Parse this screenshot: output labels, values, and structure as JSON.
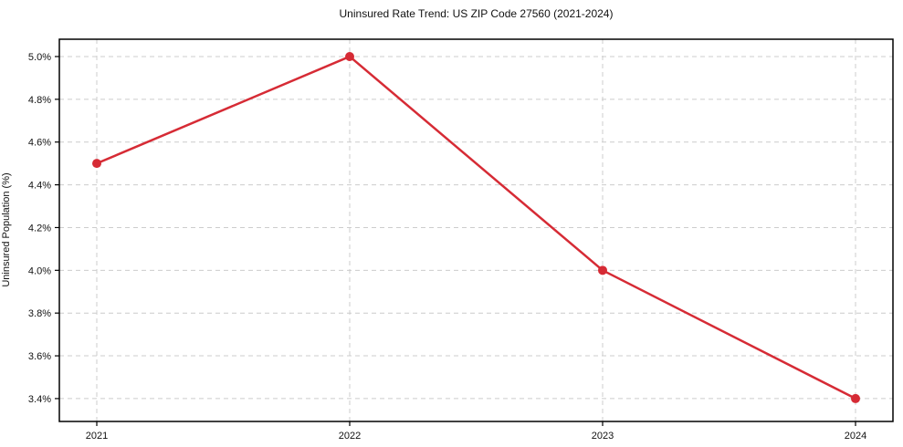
{
  "chart_data": {
    "type": "line",
    "title": "Uninsured Rate Trend: US ZIP Code 27560 (2021-2024)",
    "xlabel": "",
    "ylabel": "Uninsured Population (%)",
    "x": [
      2021,
      2022,
      2023,
      2024
    ],
    "series": [
      {
        "name": "Uninsured Population (%)",
        "values": [
          4.5,
          5.0,
          4.0,
          3.4
        ]
      }
    ],
    "yticks": [
      3.4,
      3.6,
      3.8,
      4.0,
      4.2,
      4.4,
      4.6,
      4.8,
      5.0
    ],
    "ytick_suffix": "%",
    "ylim": [
      3.293,
      5.081
    ],
    "grid": true,
    "grid_style": "dashed",
    "legend": "none",
    "colors": {
      "line": "#d62b35",
      "marker": "#d62b35",
      "grid": "#cccccc",
      "axis": "#000000",
      "text": "#111111",
      "background": "#ffffff"
    }
  }
}
